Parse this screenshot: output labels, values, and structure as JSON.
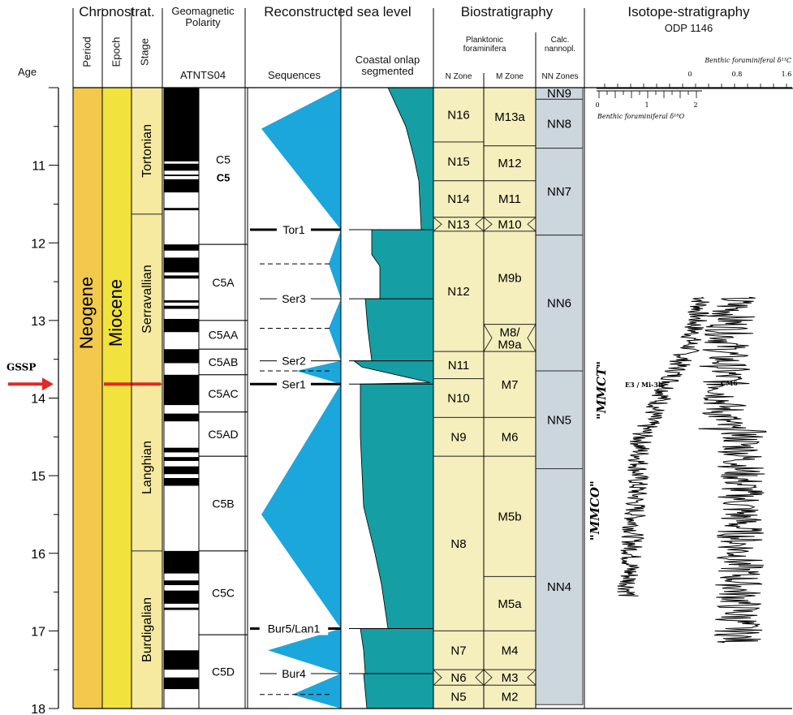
{
  "headers": {
    "chronostrat": "Chronostrat.",
    "geomag": "Geomagnetic\nPolarity",
    "sealevel": "Reconstructed sea level",
    "biostrat": "Biostratigraphy",
    "isotope": "Isotope-stratigraphy",
    "site": "ODP 1146",
    "age": "Age",
    "period": "Period",
    "epoch": "Epoch",
    "stage": "Stage",
    "atnts": "ATNTS04",
    "sequences": "Sequences",
    "onlap": "Coastal onlap\nsegmented",
    "planktonic": "Planktonic\nforaminifera",
    "nannopl": "Calc.\nnannopl.",
    "nzone": "N Zone",
    "mzone": "M Zone",
    "nnzones": "NN Zones"
  },
  "ages": [
    {
      "v": 11,
      "label": "11"
    },
    {
      "v": 12,
      "label": "12"
    },
    {
      "v": 13,
      "label": "13"
    },
    {
      "v": 14,
      "label": "14"
    },
    {
      "v": 15,
      "label": "15"
    },
    {
      "v": 16,
      "label": "16"
    },
    {
      "v": 17,
      "label": "17"
    },
    {
      "v": 18,
      "label": "18"
    }
  ],
  "period": "Neogene",
  "epoch": "Miocene",
  "stages": [
    {
      "name": "Tortonian",
      "top": 10,
      "base": 11.63
    },
    {
      "name": "Serravallian",
      "top": 11.63,
      "base": 13.82
    },
    {
      "name": "Langhian",
      "top": 13.82,
      "base": 15.97
    },
    {
      "name": "Burdigalian",
      "top": 15.97,
      "base": 18
    }
  ],
  "chrons": [
    {
      "name": "C5",
      "top": 10,
      "base": 12.02
    },
    {
      "name": "C5A",
      "top": 12.02,
      "base": 13.0
    },
    {
      "name": "C5AA",
      "top": 13.0,
      "base": 13.37
    },
    {
      "name": "C5AB",
      "top": 13.37,
      "base": 13.7
    },
    {
      "name": "C5AC",
      "top": 13.7,
      "base": 14.18
    },
    {
      "name": "C5AD",
      "top": 14.18,
      "base": 14.75
    },
    {
      "name": "C5B",
      "top": 14.75,
      "base": 15.97
    },
    {
      "name": "C5C",
      "top": 15.97,
      "base": 17.05
    },
    {
      "name": "C5D",
      "top": 17.05,
      "base": 18
    }
  ],
  "chron_c5_label2": "C5",
  "normal_polarity": [
    [
      10.0,
      10.95
    ],
    [
      10.98,
      11.07
    ],
    [
      11.12,
      11.14
    ],
    [
      11.18,
      11.35
    ],
    [
      11.55,
      11.58
    ],
    [
      12.02,
      12.1
    ],
    [
      12.19,
      12.38
    ],
    [
      12.42,
      12.46
    ],
    [
      12.74,
      12.77
    ],
    [
      12.81,
      12.85
    ],
    [
      12.98,
      13.15
    ],
    [
      13.37,
      13.55
    ],
    [
      13.7,
      14.09
    ],
    [
      14.2,
      14.3
    ],
    [
      14.64,
      14.7
    ],
    [
      14.76,
      14.81
    ],
    [
      14.88,
      14.98
    ],
    [
      15.03,
      15.13
    ],
    [
      15.97,
      16.26
    ],
    [
      16.35,
      16.41
    ],
    [
      16.48,
      16.65
    ],
    [
      16.7,
      16.73
    ],
    [
      17.25,
      17.5
    ],
    [
      17.6,
      17.75
    ]
  ],
  "sequences": [
    {
      "label": "Tor1",
      "age": 11.83,
      "thick": true
    },
    {
      "label": "Ser3",
      "age": 12.72,
      "thick": false
    },
    {
      "label": "Ser2",
      "age": 13.52,
      "thick": false
    },
    {
      "label": "Ser1",
      "age": 13.82,
      "thick": true
    },
    {
      "label": "Bur5/Lan1",
      "age": 16.97,
      "thick": true
    },
    {
      "label": "Bur4",
      "age": 17.55,
      "thick": false
    }
  ],
  "seq_dashed": [
    12.27,
    13.1,
    13.65,
    17.82
  ],
  "n_zones": [
    {
      "name": "N16",
      "top": 10,
      "base": 10.7
    },
    {
      "name": "N15",
      "top": 10.7,
      "base": 11.2
    },
    {
      "name": "N14",
      "top": 11.2,
      "base": 11.67
    },
    {
      "name": "N13",
      "top": 11.67,
      "base": 11.85,
      "wavy": true
    },
    {
      "name": "N12",
      "top": 11.85,
      "base": 13.4
    },
    {
      "name": "N11",
      "top": 13.4,
      "base": 13.75
    },
    {
      "name": "N10",
      "top": 13.75,
      "base": 14.25
    },
    {
      "name": "N9",
      "top": 14.25,
      "base": 14.75
    },
    {
      "name": "N8",
      "top": 14.75,
      "base": 17.0
    },
    {
      "name": "N7",
      "top": 17.0,
      "base": 17.5
    },
    {
      "name": "N6",
      "top": 17.5,
      "base": 17.7,
      "wavy": true
    },
    {
      "name": "N5",
      "top": 17.7,
      "base": 18.0
    }
  ],
  "m_zones": [
    {
      "name": "M13a",
      "top": 10,
      "base": 10.75
    },
    {
      "name": "M12",
      "top": 10.75,
      "base": 11.2
    },
    {
      "name": "M11",
      "top": 11.2,
      "base": 11.67
    },
    {
      "name": "M10",
      "top": 11.67,
      "base": 11.85,
      "wavy": true
    },
    {
      "name": "M9b",
      "top": 11.85,
      "base": 13.05
    },
    {
      "name": "M8/\nM9a",
      "top": 13.05,
      "base": 13.4,
      "wavy": true
    },
    {
      "name": "M7",
      "top": 13.4,
      "base": 14.25
    },
    {
      "name": "M6",
      "top": 14.25,
      "base": 14.75
    },
    {
      "name": "M5b",
      "top": 14.75,
      "base": 16.3
    },
    {
      "name": "M5a",
      "top": 16.3,
      "base": 17.0
    },
    {
      "name": "M4",
      "top": 17.0,
      "base": 17.5
    },
    {
      "name": "M3",
      "top": 17.5,
      "base": 17.7,
      "wavy": true
    },
    {
      "name": "M2",
      "top": 17.7,
      "base": 18.0
    }
  ],
  "nn_zones": [
    {
      "name": "NN9",
      "top": 10,
      "base": 10.15
    },
    {
      "name": "NN8",
      "top": 10.15,
      "base": 10.78
    },
    {
      "name": "NN7",
      "top": 10.78,
      "base": 11.9
    },
    {
      "name": "NN6",
      "top": 11.9,
      "base": 13.65
    },
    {
      "name": "NN5",
      "top": 13.65,
      "base": 14.91
    },
    {
      "name": "NN4",
      "top": 14.91,
      "base": 17.95
    }
  ],
  "isotope": {
    "c13_title": "Benthic foraminiferal δ¹³C",
    "o18_title": "Benthic foraminiferal δ¹⁸O",
    "c13_ticks": [
      "0",
      "0.8",
      "1.6"
    ],
    "o18_ticks": [
      "0",
      "1",
      "2"
    ],
    "e3": "E3 / Mi-3b",
    "cm6": "CM6",
    "mmct": "\"MMCT\"",
    "mmco": "\"MMCO\""
  },
  "gssp": {
    "label": "GSSP",
    "age": 13.82,
    "arrow_color": "#e02a22"
  },
  "colors": {
    "period": "#f2c94c",
    "epoch": "#f1e23d",
    "stage": "#f6e9a0",
    "seq": "#1ba6dc",
    "onlap": "#159ea3",
    "nzone": "#f5efbd",
    "mzone": "#f5efbd",
    "nnzone": "#ccd6dd",
    "gssp_line": "#e02a22"
  }
}
